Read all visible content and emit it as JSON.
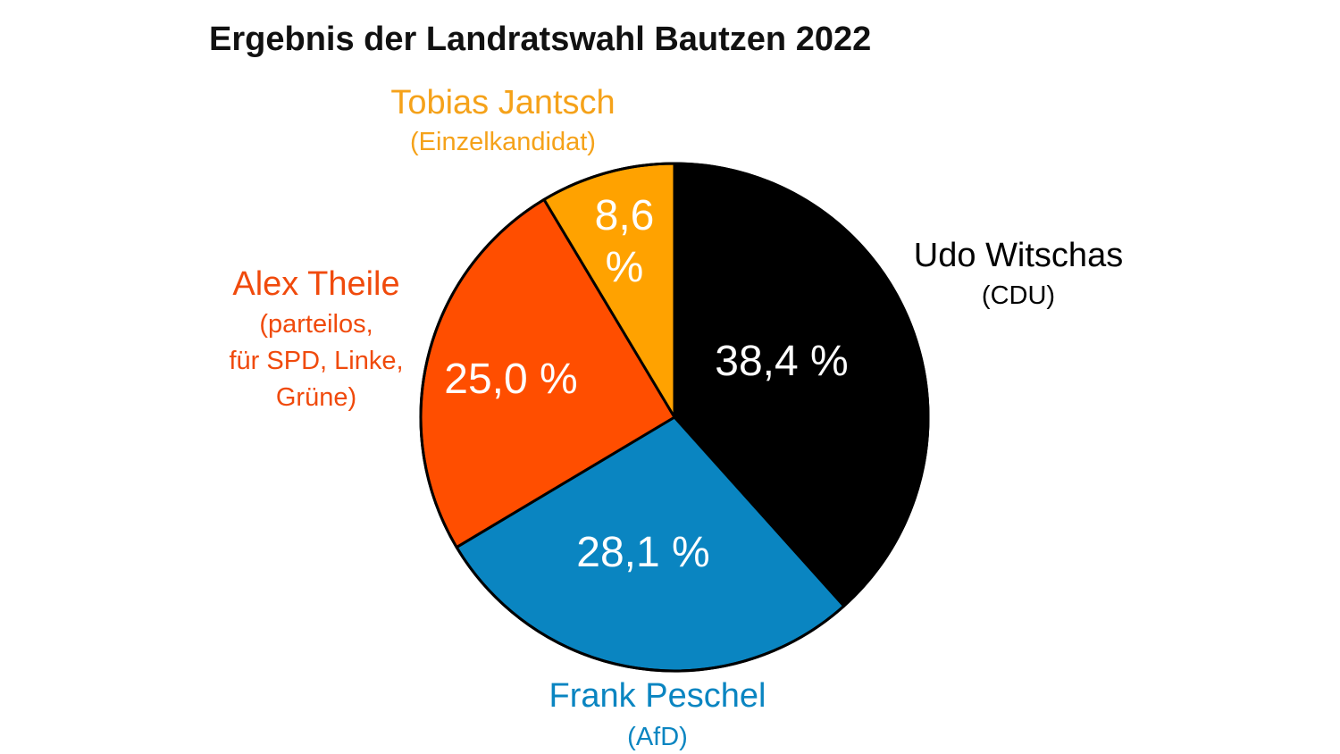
{
  "chart_data": {
    "type": "pie",
    "title": "Ergebnis der Landratswahl Bautzen 2022",
    "slices": [
      {
        "name": "Udo Witschas",
        "party_lines": [
          "(CDU)"
        ],
        "value": 38.4,
        "label_lines": [
          "38,4 %"
        ],
        "color": "#000000",
        "label_color": "#000000"
      },
      {
        "name": "Frank Peschel",
        "party_lines": [
          "(AfD)"
        ],
        "value": 28.1,
        "label_lines": [
          "28,1 %"
        ],
        "color": "#0A85C1",
        "label_color": "#0A85C1"
      },
      {
        "name": "Alex Theile",
        "party_lines": [
          "(parteilos,",
          "für SPD, Linke,",
          "Grüne)"
        ],
        "value": 25.0,
        "label_lines": [
          "25,0 %"
        ],
        "color": "#FF4E00",
        "label_color": "#F04A0C"
      },
      {
        "name": "Tobias Jantsch",
        "party_lines": [
          "(Einzelkandidat)"
        ],
        "value": 8.6,
        "label_lines": [
          "8,6",
          "%"
        ],
        "color": "#FFA200",
        "label_color": "#F5A21A"
      }
    ]
  }
}
